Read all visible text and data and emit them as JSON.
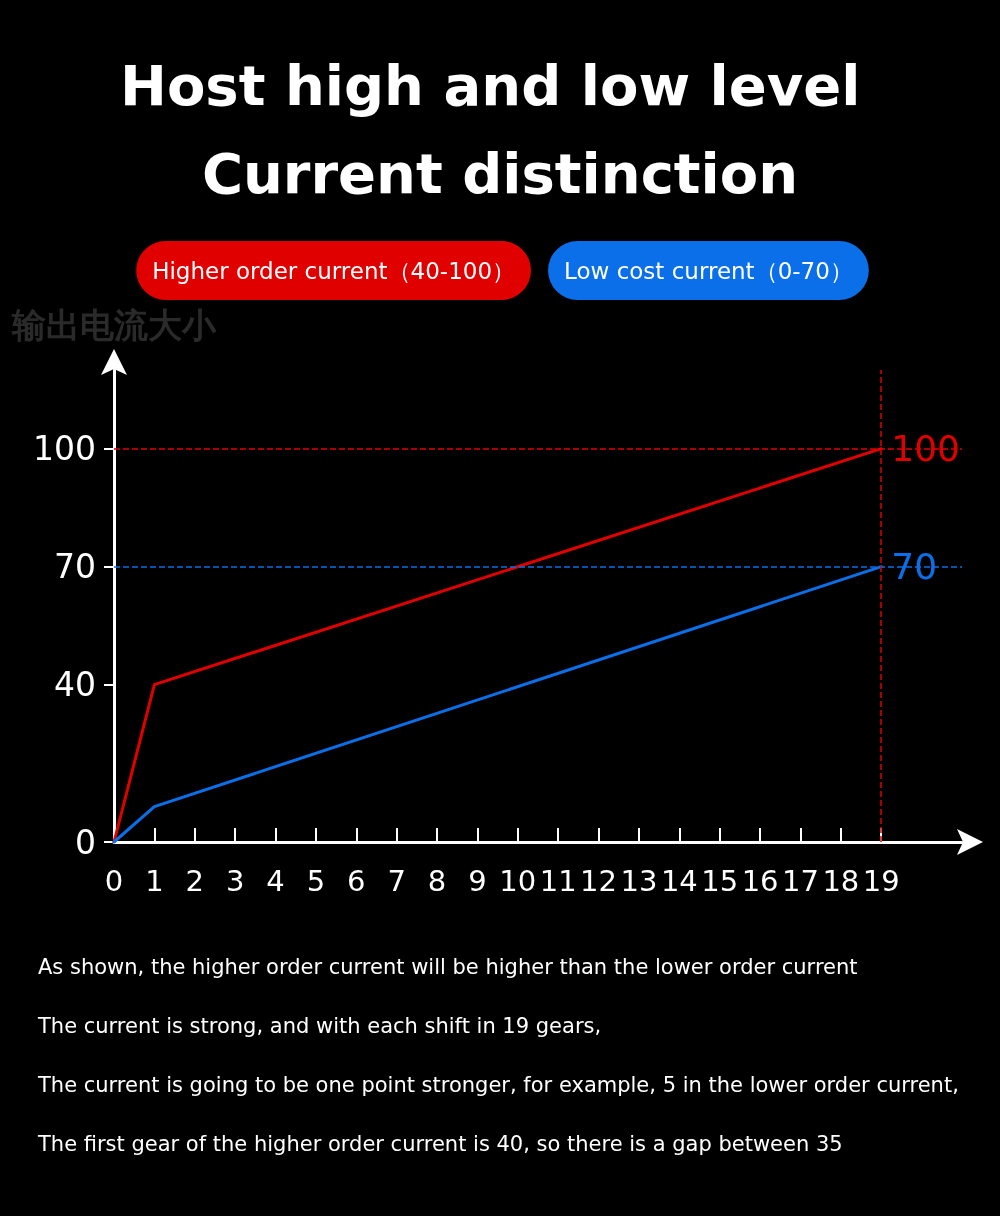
{
  "chart_data": {
    "type": "line",
    "title": "Host high and low level Current distinction",
    "ylabel": "输出电流大小",
    "x": [
      0,
      1,
      19
    ],
    "series": [
      {
        "name": "Higher order current（40-100）",
        "color": "#e00000",
        "values": [
          0,
          40,
          100
        ],
        "value_labels": [
          null,
          null,
          "100"
        ]
      },
      {
        "name": "Low cost current（0-70）",
        "color": "#0a6fe8",
        "values": [
          0,
          9,
          70
        ],
        "value_labels": [
          null,
          null,
          "70"
        ]
      }
    ],
    "xlim": [
      0,
      21
    ],
    "xticks": [
      0,
      1,
      2,
      3,
      4,
      5,
      6,
      7,
      8,
      9,
      10,
      11,
      12,
      13,
      14,
      15,
      16,
      17,
      18,
      19
    ],
    "ylim": [
      0,
      120
    ],
    "yticks": [
      0,
      40,
      70,
      100
    ],
    "ref_lines": [
      {
        "axis": "y",
        "value": 100,
        "label": null,
        "color": "#e00000",
        "line_style": "dashed"
      },
      {
        "axis": "y",
        "value": 70,
        "label": null,
        "color": "#0a6fe8",
        "line_style": "dashed"
      },
      {
        "axis": "x",
        "value": 19,
        "label": null,
        "color": "#e00000",
        "line_style": "dashed"
      }
    ],
    "annotations": [
      "As shown, the higher order current will be higher than the lower order current",
      "The current is strong, and with each shift in 19 gears,",
      "The current is going to be one point stronger, for example, 5 in the lower order current,",
      "The first gear of the higher order current is 40, so there is a gap between 35"
    ],
    "marker": "none",
    "line_style": "solid",
    "grid": false,
    "legend": "top"
  }
}
